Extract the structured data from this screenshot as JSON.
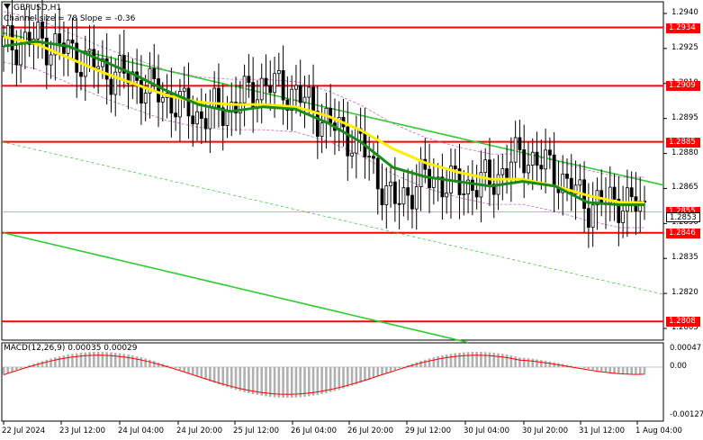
{
  "chart": {
    "symbol": "GBPUSD,H1",
    "channel_info": "Channel size = 78 Slope = -0.36",
    "macd_title": "MACD(12,26,9) 0.00035 0.00029"
  },
  "price_axis": {
    "ticks": [
      "1.2940",
      "1.2925",
      "1.2910",
      "1.2895",
      "1.2880",
      "1.2865",
      "1.2850",
      "1.2835",
      "1.2820",
      "1.2805"
    ],
    "tick_values": [
      1.294,
      1.2925,
      1.291,
      1.2895,
      1.288,
      1.2865,
      1.285,
      1.2835,
      1.282,
      1.2805
    ],
    "min": 1.28,
    "max": 1.2945
  },
  "levels": [
    {
      "label": "1.2934",
      "value": 1.2934
    },
    {
      "label": "1.2909",
      "value": 1.2909
    },
    {
      "label": "1.2885",
      "value": 1.2885
    },
    {
      "label": "1.2846",
      "value": 1.2846
    },
    {
      "label": "1.2808",
      "value": 1.2808
    }
  ],
  "current_price": {
    "label": "1.2853",
    "value": 1.2853
  },
  "hidden_price": {
    "label": "1.2855",
    "value": 1.2855
  },
  "macd_axis": {
    "ticks": [
      "0.00047",
      "0.00",
      "-0.00127"
    ],
    "values": [
      0.00047,
      0.0,
      -0.00127
    ]
  },
  "time_axis": [
    "22 Jul 2024",
    "23 Jul 12:00",
    "24 Jul 04:00",
    "24 Jul 20:00",
    "25 Jul 12:00",
    "26 Jul 04:00",
    "26 Jul 20:00",
    "29 Jul 12:00",
    "30 Jul 04:00",
    "30 Jul 20:00",
    "31 Jul 12:00",
    "1 Aug 04:00"
  ],
  "colors": {
    "level_line": "#ff0000",
    "channel_line": "#33cc33",
    "ma_fast": "#ffee00",
    "ma_slow": "#1a8a1a",
    "candles": "#000000",
    "envelope": "#cc66cc",
    "macd_hist": "#b0b0b0",
    "macd_signal": "#ff0000"
  },
  "chart_data": {
    "type": "line",
    "series": [
      {
        "x": [
          0,
          8,
          16,
          24,
          32,
          40,
          48,
          56,
          64,
          72,
          80,
          88,
          96,
          104,
          112,
          120,
          128,
          136,
          144,
          152,
          158
        ],
        "values": [
          1.2926,
          1.2929,
          1.2924,
          1.2916,
          1.2912,
          1.2904,
          1.2896,
          1.29,
          1.291,
          1.2906,
          1.2893,
          1.2884,
          1.2858,
          1.287,
          1.2866,
          1.2868,
          1.288,
          1.2872,
          1.2858,
          1.286,
          1.2856
        ]
      },
      {
        "x": [
          0,
          8,
          16,
          24,
          32,
          40,
          48,
          56,
          64,
          72,
          80,
          88,
          96,
          104,
          112,
          120,
          128,
          136,
          144,
          152,
          158
        ],
        "values": [
          1.293,
          1.2927,
          1.2921,
          1.2915,
          1.291,
          1.2905,
          1.2902,
          1.2901,
          1.2901,
          1.29,
          1.2896,
          1.289,
          1.2882,
          1.2876,
          1.2872,
          1.2869,
          1.2869,
          1.2866,
          1.2862,
          1.2859,
          1.2859
        ]
      },
      {
        "x": [
          0,
          8,
          16,
          24,
          32,
          40,
          48,
          56,
          64,
          72,
          80,
          88,
          96,
          104,
          112,
          120,
          128,
          136,
          144,
          152,
          158
        ],
        "values": [
          1.2926,
          1.2928,
          1.2926,
          1.292,
          1.2914,
          1.2907,
          1.2901,
          1.2898,
          1.29,
          1.2899,
          1.2893,
          1.2885,
          1.2874,
          1.287,
          1.2868,
          1.2866,
          1.2868,
          1.2866,
          1.2859,
          1.2858,
          1.2858
        ]
      }
    ]
  }
}
